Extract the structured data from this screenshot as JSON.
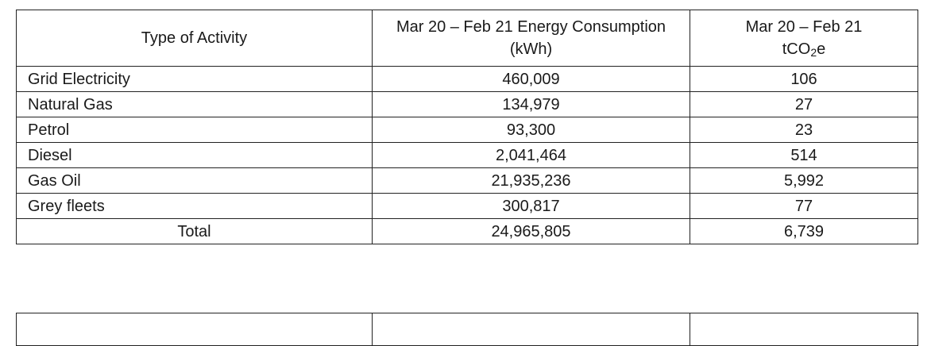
{
  "table": {
    "headers": {
      "activity": "Type of Activity",
      "energy": "Mar 20 – Feb 21 Energy Consumption (kWh)",
      "co2_prefix": "Mar 20 – Feb 21",
      "co2_unit_a": "tCO",
      "co2_unit_sub": "2",
      "co2_unit_b": "e"
    },
    "rows": [
      {
        "activity": "Grid Electricity",
        "energy": "460,009",
        "co2": "106"
      },
      {
        "activity": "Natural Gas",
        "energy": "134,979",
        "co2": "27"
      },
      {
        "activity": "Petrol",
        "energy": "93,300",
        "co2": "23"
      },
      {
        "activity": "Diesel",
        "energy": "2,041,464",
        "co2": "514"
      },
      {
        "activity": "Gas Oil",
        "energy": "21,935,236",
        "co2": "5,992"
      },
      {
        "activity": "Grey fleets",
        "energy": "300,817",
        "co2": "77"
      }
    ],
    "total": {
      "label": "Total",
      "energy": "24,965,805",
      "co2": "6,739"
    }
  }
}
